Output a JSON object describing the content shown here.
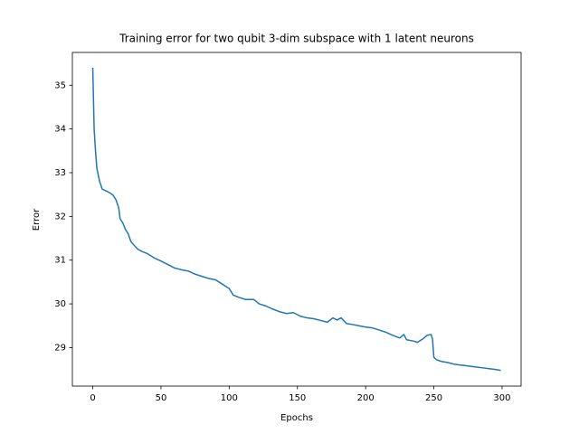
{
  "chart_data": {
    "type": "line",
    "title": "Training error for two qubit 3-dim subspace with 1 latent neurons",
    "x_label": "Epochs",
    "y_label": "Error",
    "xlim": [
      -14.95,
      313.95
    ],
    "ylim": [
      28.12,
      35.75
    ],
    "xticks": [
      0,
      50,
      100,
      150,
      200,
      250,
      300
    ],
    "yticks": [
      29,
      30,
      31,
      32,
      33,
      34,
      35
    ],
    "x": [
      0,
      1,
      2,
      3,
      5,
      7,
      10,
      13,
      15,
      17,
      19,
      20,
      22,
      24,
      26,
      28,
      30,
      33,
      36,
      40,
      45,
      50,
      55,
      60,
      65,
      70,
      75,
      80,
      85,
      90,
      95,
      100,
      103,
      107,
      112,
      118,
      122,
      127,
      132,
      137,
      142,
      147,
      152,
      157,
      162,
      167,
      172,
      176,
      179,
      182,
      186,
      190,
      195,
      200,
      205,
      210,
      215,
      220,
      225,
      228,
      230,
      235,
      238,
      242,
      245,
      248,
      249,
      250,
      252,
      256,
      260,
      265,
      270,
      275,
      280,
      285,
      290,
      295,
      299
    ],
    "series": [
      {
        "color": "#1f77b4",
        "values": [
          35.4,
          34.0,
          33.5,
          33.1,
          32.8,
          32.62,
          32.58,
          32.53,
          32.48,
          32.38,
          32.2,
          31.95,
          31.85,
          31.7,
          31.6,
          31.42,
          31.35,
          31.25,
          31.2,
          31.15,
          31.05,
          30.98,
          30.9,
          30.82,
          30.78,
          30.75,
          30.68,
          30.63,
          30.58,
          30.55,
          30.45,
          30.35,
          30.2,
          30.15,
          30.1,
          30.1,
          30.0,
          29.95,
          29.88,
          29.82,
          29.78,
          29.8,
          29.72,
          29.68,
          29.66,
          29.62,
          29.58,
          29.68,
          29.63,
          29.68,
          29.55,
          29.53,
          29.5,
          29.47,
          29.45,
          29.4,
          29.35,
          29.28,
          29.22,
          29.3,
          29.18,
          29.15,
          29.12,
          29.2,
          29.28,
          29.3,
          29.2,
          28.78,
          28.72,
          28.68,
          28.66,
          28.62,
          28.6,
          28.58,
          28.56,
          28.54,
          28.52,
          28.5,
          28.48
        ]
      }
    ]
  }
}
